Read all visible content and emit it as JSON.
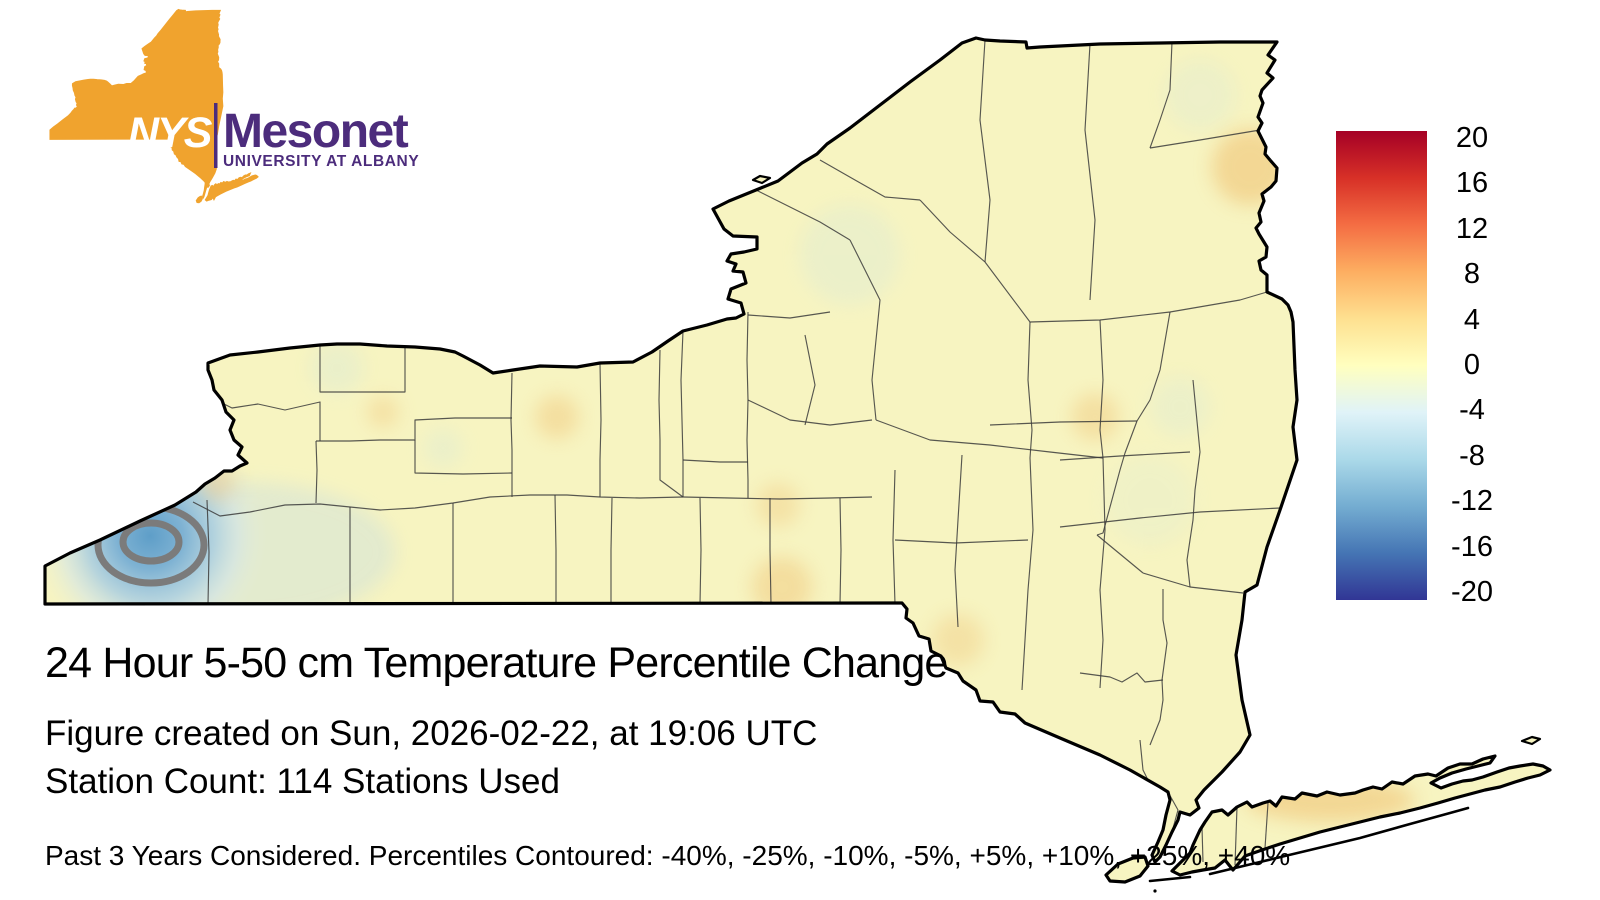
{
  "figure": {
    "title": "24 Hour 5-50 cm Temperature Percentile Change",
    "created_line": "Figure created on Sun, 2026-02-22, at 19:06 UTC",
    "station_line": "Station Count: 114 Stations Used",
    "footer_note": "Past 3 Years Considered. Percentiles Contoured: -40%, -25%, -10%, -5%, +5%, +10%, +25%, +40%"
  },
  "logo": {
    "acronym": "NYS",
    "name": "Mesonet",
    "institution": "UNIVERSITY AT ALBANY",
    "colors": {
      "state_orange": "#f0a32e",
      "brand_purple": "#4c2c7c",
      "acronym_white": "#ffffff"
    }
  },
  "colorbar": {
    "ticks": [
      "20",
      "16",
      "12",
      "8",
      "4",
      "0",
      "-4",
      "-8",
      "-12",
      "-16",
      "-20"
    ],
    "value_range": [
      -20,
      20
    ],
    "gradient_top_to_bottom": [
      "#a50026",
      "#d73027",
      "#f46d43",
      "#fdae61",
      "#fee090",
      "#ffffbf",
      "#e0f3f8",
      "#abd9e9",
      "#74add1",
      "#4575b4",
      "#313695"
    ]
  },
  "map": {
    "region": "New York State with county boundaries",
    "base_fill": "#f7f4c1",
    "state_border_color": "#000000",
    "county_line_color": "#3b3b3b",
    "contour_line_color": "#7b7b7b",
    "negative_anomaly": {
      "location": "southwest New York (Chautauqua area)",
      "tint_color": "#74add1",
      "contour_rings_visible": 2
    },
    "warm_tint_areas": [
      "central Long Island",
      "Lake Champlain shoreline",
      "scattered faint spots upstate"
    ]
  }
}
